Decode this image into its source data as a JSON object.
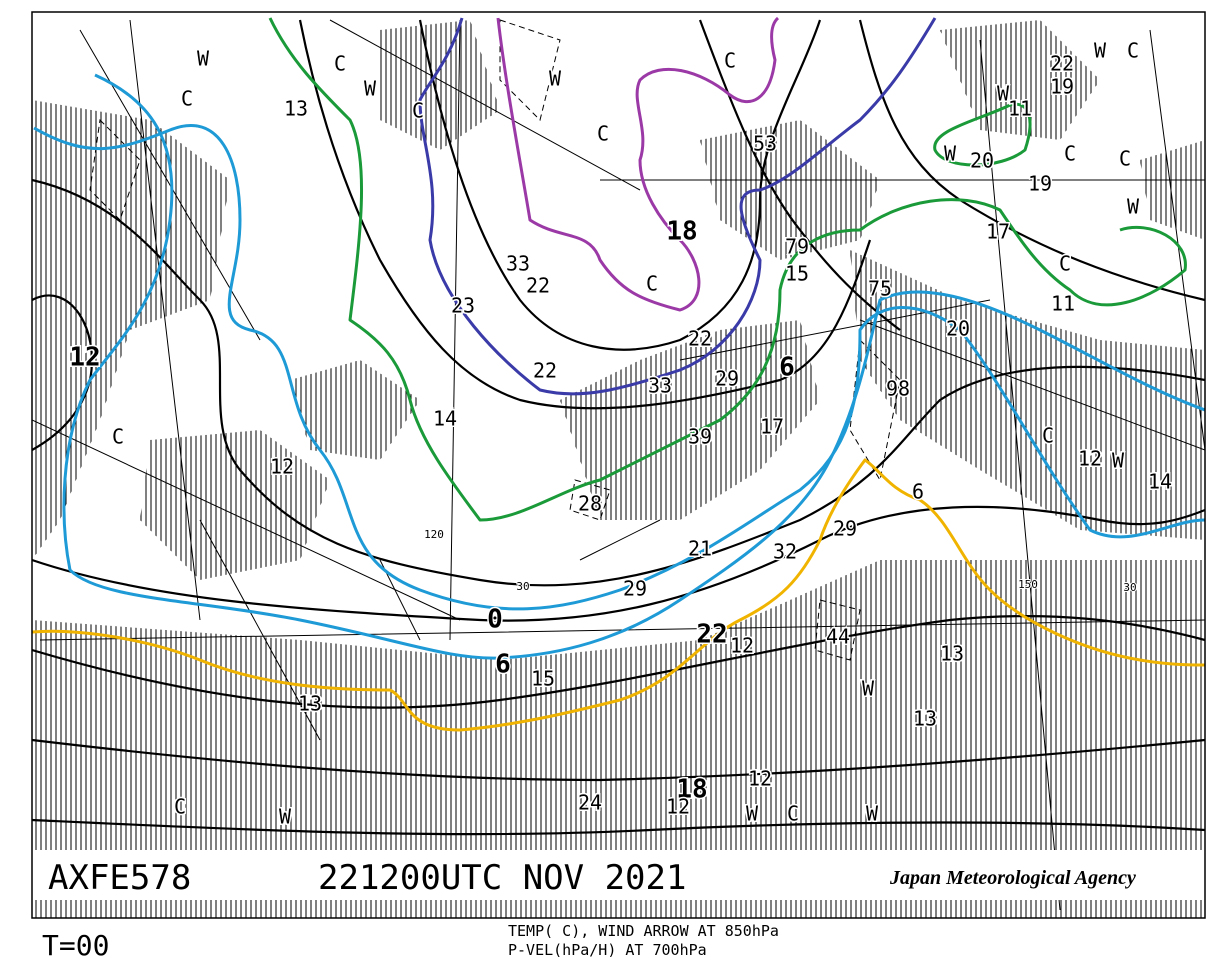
{
  "header": {
    "code": "AXFE578",
    "time": "221200UTC NOV 2021",
    "agency": "Japan Meteorological Agency"
  },
  "footer": {
    "forecast": "T=00",
    "legend": [
      "TEMP( C), WIND ARROW AT 850hPa",
      "P-VEL(hPa/H) AT 700hPa"
    ]
  },
  "map": {
    "labels": [
      "W",
      "C",
      "C",
      "W",
      "W",
      "C",
      "C",
      "C",
      "13",
      "18",
      "C",
      "33",
      "22",
      "23",
      "22",
      "33",
      "29",
      "6",
      "22",
      "17",
      "39",
      "14",
      "12",
      "C",
      "12",
      "28",
      "21",
      "32",
      "29",
      "0",
      "6",
      "15",
      "22",
      "12",
      "44",
      "13",
      "13",
      "W",
      "13",
      "18",
      "24",
      "12",
      "12",
      "W",
      "C",
      "W",
      "C",
      "W",
      "W",
      "C",
      "22",
      "19",
      "W",
      "11",
      "W",
      "20",
      "C",
      "C",
      "19",
      "W",
      "17",
      "C",
      "11",
      "20",
      "15",
      "79",
      "75",
      "98",
      "C",
      "12",
      "W",
      "14",
      "6",
      "29",
      "53",
      "120",
      "30",
      "150",
      "30"
    ]
  }
}
